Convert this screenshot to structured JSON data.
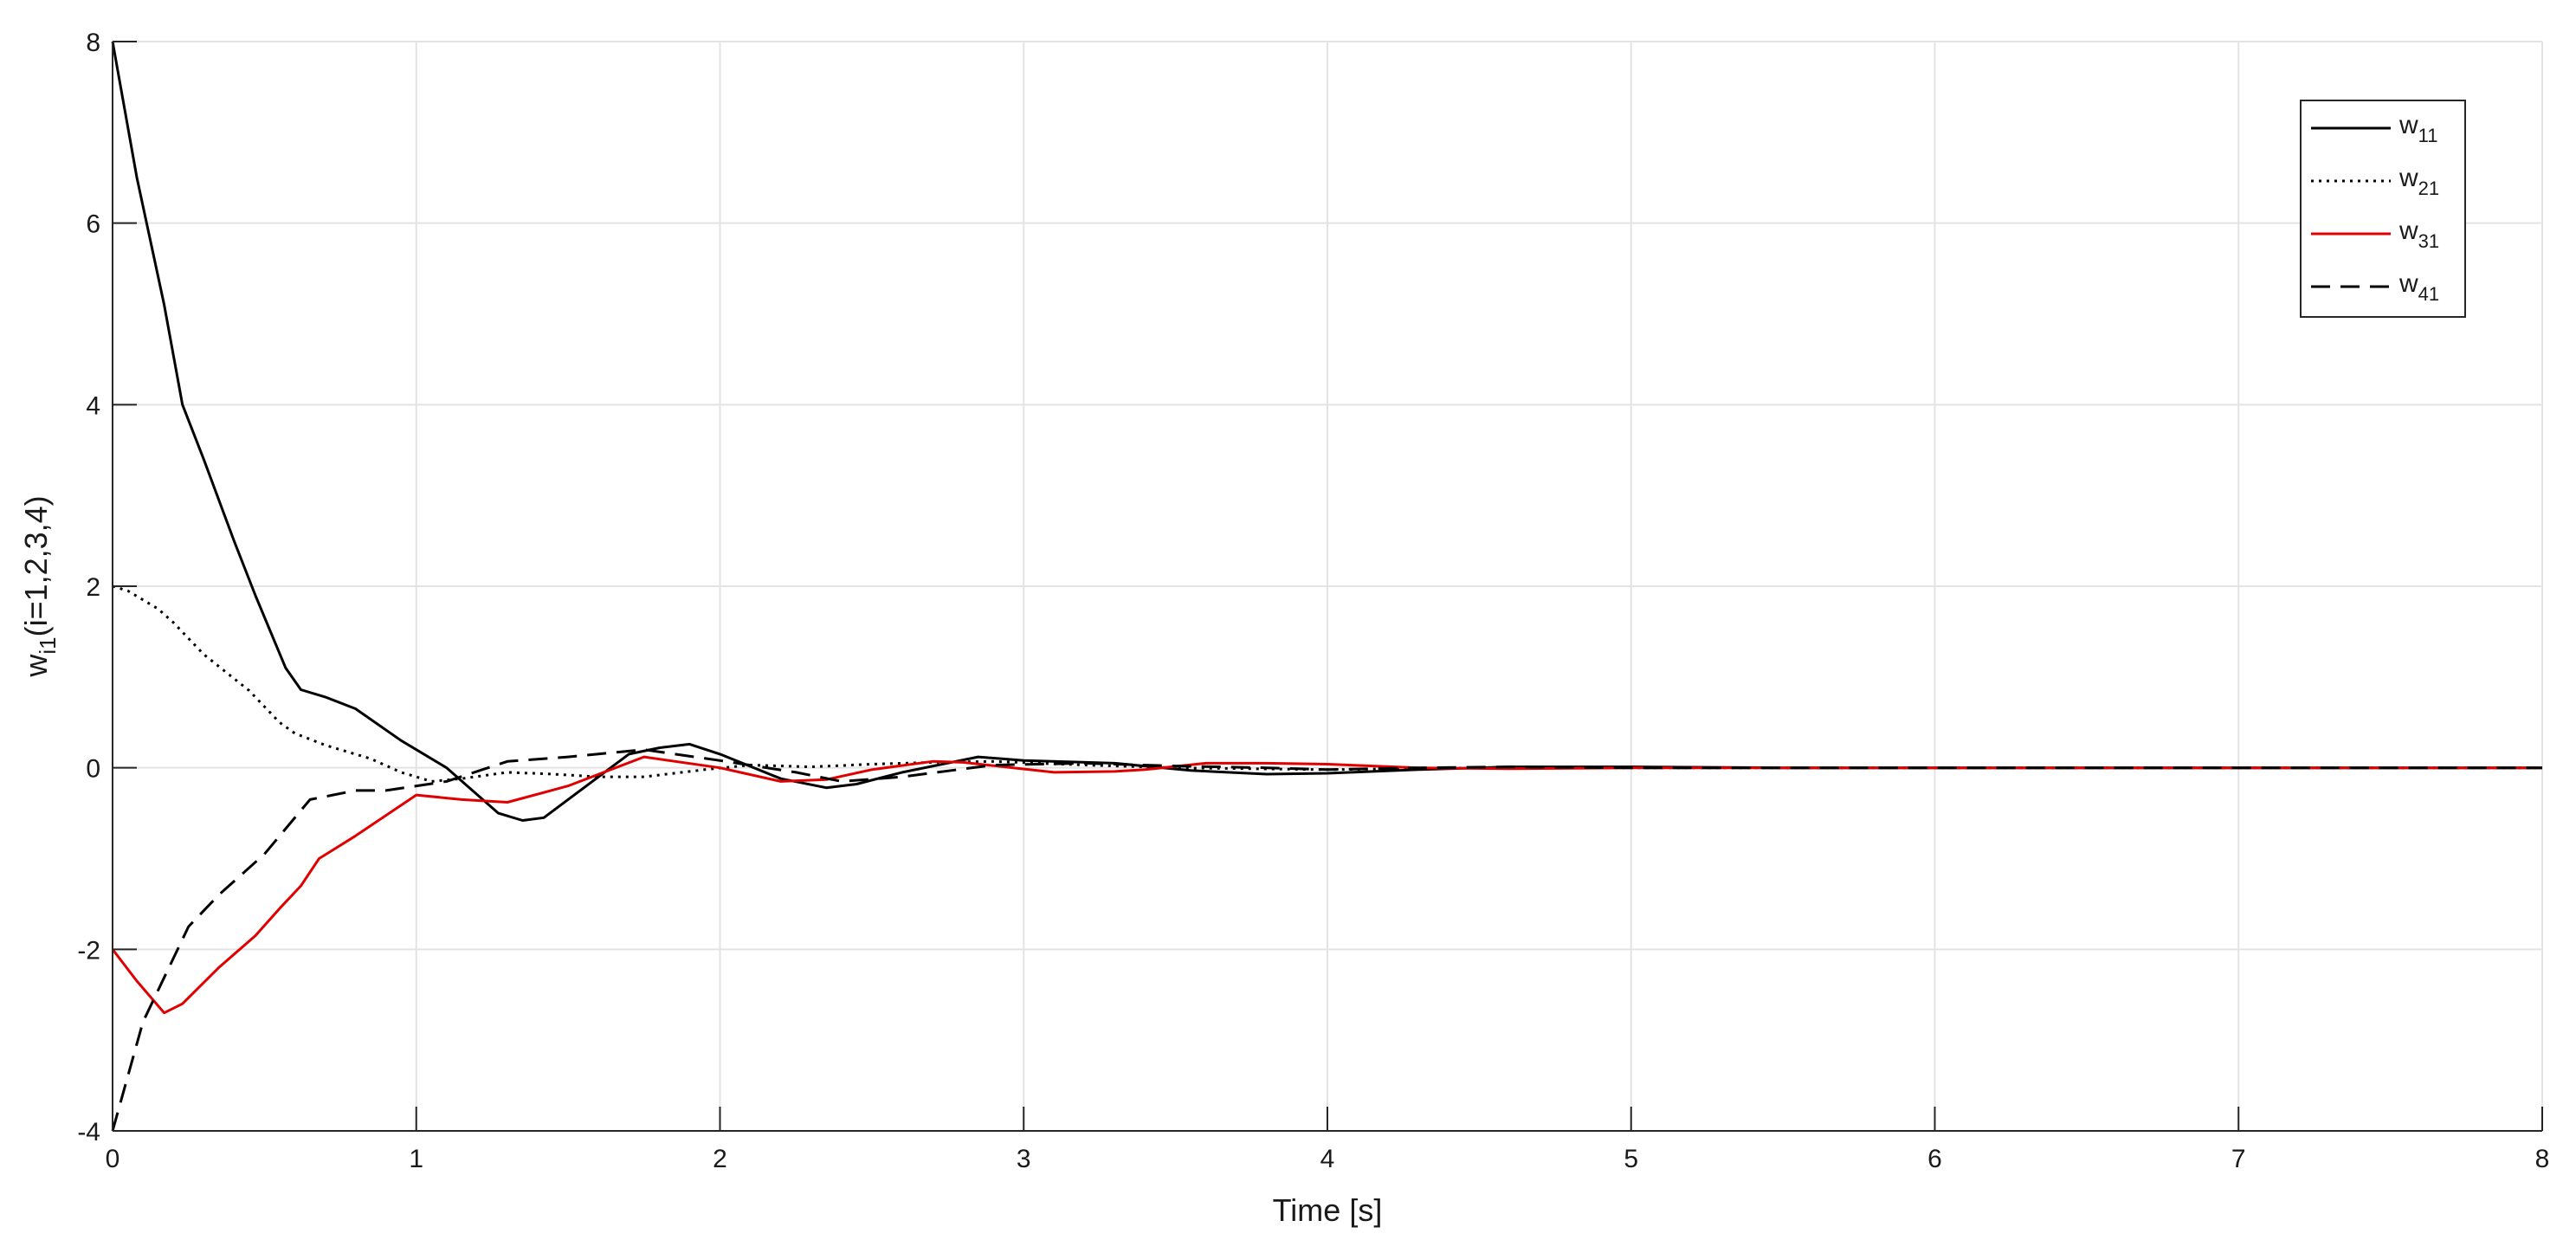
{
  "chart_data": {
    "type": "line",
    "xlabel": "Time [s]",
    "ylabel": {
      "main": "w",
      "sub": "i1",
      "rest": "(i=1,2,3,4)"
    },
    "xlim": [
      0,
      8
    ],
    "ylim": [
      -4,
      8
    ],
    "x_ticks": [
      0,
      1,
      2,
      3,
      4,
      5,
      6,
      7,
      8
    ],
    "y_ticks": [
      -4,
      -2,
      0,
      2,
      4,
      6,
      8
    ],
    "x_tick_labels": [
      "0",
      "1",
      "2",
      "3",
      "4",
      "5",
      "6",
      "7",
      "8"
    ],
    "y_tick_labels": [
      "-4",
      "-2",
      "0",
      "2",
      "4",
      "6",
      "8"
    ],
    "grid": true,
    "legend_position": "top-right",
    "series": [
      {
        "name": "w",
        "name_sub": "11",
        "color": "#000000",
        "dash": "solid",
        "points": [
          [
            0,
            8
          ],
          [
            0.08,
            6.5
          ],
          [
            0.17,
            5.1
          ],
          [
            0.23,
            4.0
          ],
          [
            0.3,
            3.4
          ],
          [
            0.4,
            2.5
          ],
          [
            0.47,
            1.9
          ],
          [
            0.57,
            1.1
          ],
          [
            0.62,
            0.86
          ],
          [
            0.7,
            0.78
          ],
          [
            0.8,
            0.65
          ],
          [
            0.95,
            0.3
          ],
          [
            1.1,
            0.0
          ],
          [
            1.27,
            -0.5
          ],
          [
            1.35,
            -0.58
          ],
          [
            1.42,
            -0.55
          ],
          [
            1.7,
            0.15
          ],
          [
            1.8,
            0.22
          ],
          [
            1.9,
            0.26
          ],
          [
            2.0,
            0.15
          ],
          [
            2.2,
            -0.12
          ],
          [
            2.35,
            -0.22
          ],
          [
            2.45,
            -0.18
          ],
          [
            2.6,
            -0.05
          ],
          [
            2.85,
            0.12
          ],
          [
            3.0,
            0.08
          ],
          [
            3.3,
            0.05
          ],
          [
            3.55,
            -0.03
          ],
          [
            3.8,
            -0.07
          ],
          [
            4.0,
            -0.06
          ],
          [
            4.3,
            -0.02
          ],
          [
            4.6,
            0.01
          ],
          [
            5.0,
            0.01
          ],
          [
            5.5,
            0.0
          ],
          [
            8.0,
            0.0
          ]
        ]
      },
      {
        "name": "w",
        "name_sub": "21",
        "color": "#000000",
        "dash": "dotted",
        "points": [
          [
            0,
            2.0
          ],
          [
            0.05,
            1.95
          ],
          [
            0.15,
            1.75
          ],
          [
            0.2,
            1.6
          ],
          [
            0.3,
            1.25
          ],
          [
            0.45,
            0.85
          ],
          [
            0.55,
            0.5
          ],
          [
            0.6,
            0.38
          ],
          [
            0.7,
            0.25
          ],
          [
            0.85,
            0.1
          ],
          [
            0.95,
            -0.05
          ],
          [
            1.05,
            -0.15
          ],
          [
            1.15,
            -0.12
          ],
          [
            1.3,
            -0.05
          ],
          [
            1.45,
            -0.07
          ],
          [
            1.6,
            -0.1
          ],
          [
            1.75,
            -0.1
          ],
          [
            1.95,
            -0.02
          ],
          [
            2.1,
            0.03
          ],
          [
            2.3,
            0.01
          ],
          [
            2.5,
            0.04
          ],
          [
            2.7,
            0.06
          ],
          [
            2.9,
            0.07
          ],
          [
            3.2,
            0.03
          ],
          [
            3.5,
            0.0
          ],
          [
            4.0,
            -0.02
          ],
          [
            4.5,
            0.0
          ],
          [
            5.0,
            0.0
          ],
          [
            8.0,
            0.0
          ]
        ]
      },
      {
        "name": "w",
        "name_sub": "31",
        "color": "#e00000",
        "dash": "solid",
        "points": [
          [
            0,
            -2.0
          ],
          [
            0.08,
            -2.35
          ],
          [
            0.17,
            -2.7
          ],
          [
            0.23,
            -2.6
          ],
          [
            0.35,
            -2.2
          ],
          [
            0.47,
            -1.85
          ],
          [
            0.55,
            -1.55
          ],
          [
            0.62,
            -1.3
          ],
          [
            0.68,
            -1.0
          ],
          [
            0.8,
            -0.75
          ],
          [
            1.0,
            -0.3
          ],
          [
            1.15,
            -0.35
          ],
          [
            1.3,
            -0.38
          ],
          [
            1.5,
            -0.2
          ],
          [
            1.75,
            0.12
          ],
          [
            2.0,
            0.0
          ],
          [
            2.2,
            -0.15
          ],
          [
            2.35,
            -0.13
          ],
          [
            2.5,
            -0.02
          ],
          [
            2.7,
            0.07
          ],
          [
            2.8,
            0.06
          ],
          [
            3.1,
            -0.05
          ],
          [
            3.3,
            -0.04
          ],
          [
            3.4,
            -0.02
          ],
          [
            3.6,
            0.05
          ],
          [
            3.8,
            0.05
          ],
          [
            4.0,
            0.04
          ],
          [
            4.3,
            0.0
          ],
          [
            4.6,
            -0.01
          ],
          [
            5.0,
            0.0
          ],
          [
            8.0,
            0.0
          ]
        ]
      },
      {
        "name": "w",
        "name_sub": "41",
        "color": "#000000",
        "dash": "dashed",
        "points": [
          [
            0,
            -4.0
          ],
          [
            0.1,
            -2.8
          ],
          [
            0.25,
            -1.75
          ],
          [
            0.35,
            -1.4
          ],
          [
            0.5,
            -0.95
          ],
          [
            0.65,
            -0.35
          ],
          [
            0.8,
            -0.25
          ],
          [
            0.9,
            -0.25
          ],
          [
            1.1,
            -0.15
          ],
          [
            1.3,
            0.07
          ],
          [
            1.5,
            0.12
          ],
          [
            1.75,
            0.2
          ],
          [
            2.0,
            0.08
          ],
          [
            2.25,
            -0.05
          ],
          [
            2.4,
            -0.15
          ],
          [
            2.6,
            -0.1
          ],
          [
            2.9,
            0.03
          ],
          [
            3.2,
            0.05
          ],
          [
            3.5,
            0.02
          ],
          [
            3.8,
            0.0
          ],
          [
            4.0,
            -0.02
          ],
          [
            4.3,
            0.0
          ],
          [
            4.6,
            0.01
          ],
          [
            5.0,
            0.0
          ],
          [
            8.0,
            0.0
          ]
        ]
      }
    ]
  }
}
